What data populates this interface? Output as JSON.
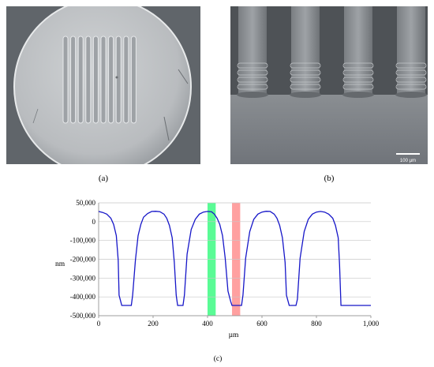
{
  "figure": {
    "caption_a": "(a)",
    "caption_b": "(b)",
    "caption_c": "(c)",
    "scale_bar": "100 µm"
  },
  "colors": {
    "line": "#1616c8",
    "green_band": "#3dfa83",
    "red_band": "#ff8f8f"
  },
  "chart_data": {
    "type": "line",
    "xlabel": "µm",
    "ylabel": "nm",
    "xlim": [
      0,
      1000
    ],
    "ylim": [
      -500000,
      50000
    ],
    "xticks": [
      "0",
      "200",
      "400",
      "600",
      "800",
      "1,000"
    ],
    "yticks": [
      "50,000",
      "0",
      "-100,000",
      "-200,000",
      "-300,000",
      "-400,000",
      "-500,000"
    ],
    "grid": "horizontal",
    "bands": [
      {
        "color": "green",
        "x": [
          400,
          430
        ]
      },
      {
        "color": "red",
        "x": [
          490,
          520
        ]
      }
    ],
    "series": [
      {
        "x": [
          0,
          15,
          30,
          45,
          55,
          65,
          72,
          75,
          85,
          120,
          125,
          135,
          145,
          155,
          165,
          180,
          195,
          210,
          225,
          240,
          250,
          260,
          270,
          278,
          285,
          290,
          310,
          315,
          325,
          340,
          355,
          370,
          385,
          400,
          415,
          425,
          435,
          445,
          455,
          465,
          475,
          485,
          490,
          525,
          530,
          540,
          555,
          570,
          585,
          600,
          615,
          630,
          645,
          655,
          665,
          675,
          685,
          690,
          700,
          725,
          730,
          740,
          755,
          770,
          785,
          800,
          815,
          830,
          845,
          860,
          870,
          880,
          885,
          890,
          1000
        ],
        "y": [
          8000,
          3000,
          -5000,
          -25000,
          -55000,
          -110000,
          -230000,
          -400000,
          -450000,
          -450000,
          -400000,
          -230000,
          -110000,
          -55000,
          -20000,
          -2000,
          8000,
          9000,
          7000,
          -5000,
          -25000,
          -60000,
          -120000,
          -240000,
          -400000,
          -450000,
          -450000,
          -400000,
          -200000,
          -80000,
          -30000,
          -5000,
          5000,
          8000,
          6000,
          -5000,
          -25000,
          -55000,
          -110000,
          -220000,
          -380000,
          -430000,
          -450000,
          -450000,
          -400000,
          -220000,
          -90000,
          -30000,
          -5000,
          5000,
          9000,
          8000,
          -5000,
          -25000,
          -60000,
          -120000,
          -240000,
          -400000,
          -450000,
          -450000,
          -420000,
          -220000,
          -90000,
          -30000,
          -5000,
          5000,
          8000,
          5000,
          -5000,
          -25000,
          -60000,
          -120000,
          -250000,
          -450000,
          -450000
        ]
      }
    ]
  }
}
